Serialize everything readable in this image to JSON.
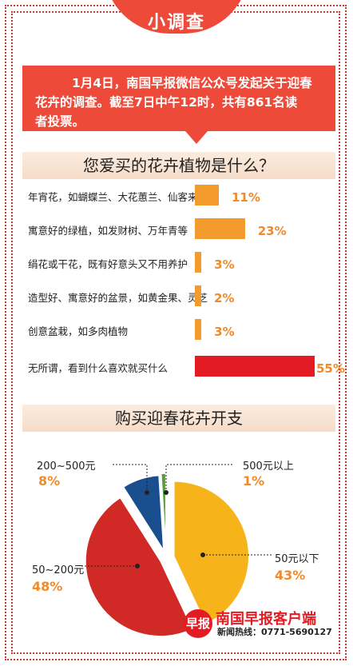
{
  "header": {
    "title": "小调查"
  },
  "intro": {
    "line1": "1月4日，南国早报微信公众号发起关于迎春",
    "line2": "花卉的调查。截至7日中午12时，共有861名读",
    "line3": "者投票。"
  },
  "chart_data": [
    {
      "type": "bar",
      "title": "您爱买的花卉植物是什么？",
      "categories": [
        "年宵花，如蝴蝶兰、大花蕙兰、仙客来等",
        "寓意好的绿植，如发财树、万年青等",
        "绢花或干花，既有好意头又不用养护",
        "造型好、寓意好的盆景，如黄金果、灵芝",
        "创意盆栽，如多肉植物",
        "无所谓，看到什么喜欢就买什么"
      ],
      "values": [
        11,
        23,
        3,
        2,
        3,
        55
      ],
      "labels": [
        "11%",
        "23%",
        "3%",
        "2%",
        "3%",
        "55%"
      ],
      "colors": [
        "#f39b2c",
        "#f39b2c",
        "#f39b2c",
        "#f39b2c",
        "#f39b2c",
        "#e31b23"
      ]
    },
    {
      "type": "pie",
      "title": "购买迎春花卉开支",
      "categories": [
        "50元以下",
        "50~200元",
        "200~500元",
        "500元以上"
      ],
      "values": [
        43,
        48,
        8,
        1
      ],
      "labels": [
        "43%",
        "48%",
        "8%",
        "1%"
      ],
      "colors": [
        "#f6b41a",
        "#d12a26",
        "#1a4f8f",
        "#5a9a3a"
      ]
    }
  ],
  "footer": {
    "badge": "早报",
    "brand": "南国早报客户端",
    "hotline": "新闻热线：0771-5690127"
  }
}
